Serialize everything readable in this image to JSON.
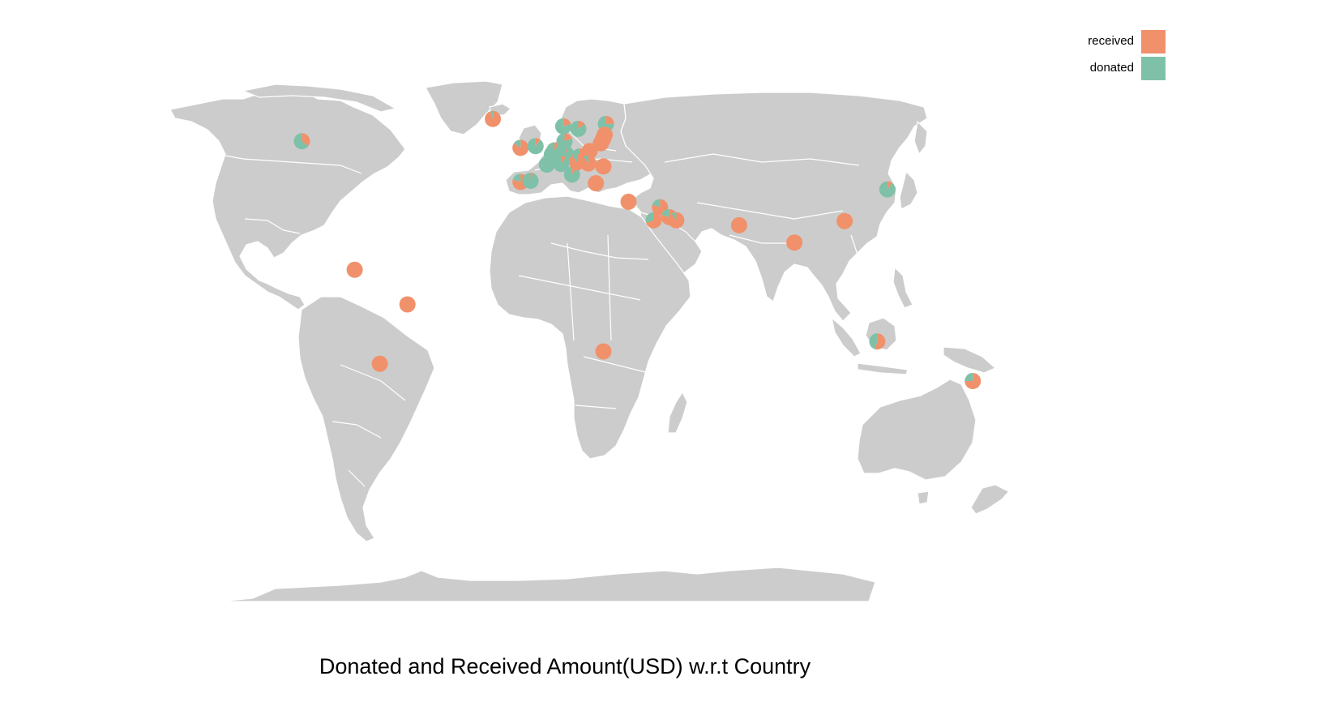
{
  "caption": "Donated and Received Amount(USD) w.r.t Country",
  "legend": [
    {
      "label": "received",
      "color": "#f0916b"
    },
    {
      "label": "donated",
      "color": "#7fc1a8"
    }
  ],
  "colors": {
    "received": "#f0916b",
    "donated": "#7fc1a8",
    "land": "#cccccc",
    "border": "#ffffff"
  },
  "locations": [
    {
      "lon": -95,
      "lat": 56,
      "received": 0.35,
      "donated": 0.65
    },
    {
      "lon": -19,
      "lat": 65,
      "received": 0.95,
      "donated": 0.05
    },
    {
      "lon": -8,
      "lat": 53.3,
      "received": 0.85,
      "donated": 0.15
    },
    {
      "lon": -2,
      "lat": 54,
      "received": 0.1,
      "donated": 0.9
    },
    {
      "lon": -8,
      "lat": 39.5,
      "received": 0.8,
      "donated": 0.2
    },
    {
      "lon": -4,
      "lat": 40,
      "received": 0.05,
      "donated": 0.95
    },
    {
      "lon": 2.5,
      "lat": 46.5,
      "received": 0.05,
      "donated": 0.95
    },
    {
      "lon": 4.5,
      "lat": 50.7,
      "received": 0.1,
      "donated": 0.9
    },
    {
      "lon": 5.5,
      "lat": 52.3,
      "received": 0.1,
      "donated": 0.9
    },
    {
      "lon": 10,
      "lat": 51,
      "received": 0.05,
      "donated": 0.95
    },
    {
      "lon": 8.2,
      "lat": 46.8,
      "received": 0.1,
      "donated": 0.9
    },
    {
      "lon": 12.5,
      "lat": 42.5,
      "received": 0.1,
      "donated": 0.9
    },
    {
      "lon": 9.5,
      "lat": 56,
      "received": 0.2,
      "donated": 0.8
    },
    {
      "lon": 15,
      "lat": 61,
      "received": 0.15,
      "donated": 0.85
    },
    {
      "lon": 9,
      "lat": 62,
      "received": 0.2,
      "donated": 0.8
    },
    {
      "lon": 26,
      "lat": 63,
      "received": 0.25,
      "donated": 0.75
    },
    {
      "lon": 25.5,
      "lat": 58.6,
      "received": 1,
      "donated": 0
    },
    {
      "lon": 24.8,
      "lat": 56.8,
      "received": 1,
      "donated": 0
    },
    {
      "lon": 24,
      "lat": 55.2,
      "received": 1,
      "donated": 0
    },
    {
      "lon": 19.5,
      "lat": 52,
      "received": 1,
      "donated": 0
    },
    {
      "lon": 15.5,
      "lat": 49.8,
      "received": 0.8,
      "donated": 0.2
    },
    {
      "lon": 14.5,
      "lat": 47.5,
      "received": 0.9,
      "donated": 0.1
    },
    {
      "lon": 19,
      "lat": 47,
      "received": 0.9,
      "donated": 0.1
    },
    {
      "lon": 25,
      "lat": 45.8,
      "received": 1,
      "donated": 0
    },
    {
      "lon": 22,
      "lat": 39,
      "received": 1,
      "donated": 0
    },
    {
      "lon": 35,
      "lat": 31.5,
      "received": 1,
      "donated": 0
    },
    {
      "lon": 47.5,
      "lat": 29.3,
      "received": 0.8,
      "donated": 0.2
    },
    {
      "lon": 45,
      "lat": 24,
      "received": 0.7,
      "donated": 0.3
    },
    {
      "lon": 51.2,
      "lat": 25.3,
      "received": 0.8,
      "donated": 0.2
    },
    {
      "lon": 54,
      "lat": 24,
      "received": 0.9,
      "donated": 0.1
    },
    {
      "lon": 79,
      "lat": 22,
      "received": 1,
      "donated": 0
    },
    {
      "lon": 101,
      "lat": 15,
      "received": 1,
      "donated": 0
    },
    {
      "lon": 121,
      "lat": 23.7,
      "received": 1,
      "donated": 0
    },
    {
      "lon": 138,
      "lat": 36.5,
      "received": 0.1,
      "donated": 0.9
    },
    {
      "lon": -74,
      "lat": 4,
      "received": 1,
      "donated": 0
    },
    {
      "lon": -53,
      "lat": -10,
      "received": 1,
      "donated": 0
    },
    {
      "lon": -64,
      "lat": -34,
      "received": 1,
      "donated": 0
    },
    {
      "lon": 25,
      "lat": -29,
      "received": 1,
      "donated": 0
    },
    {
      "lon": 134,
      "lat": -25,
      "received": 0.55,
      "donated": 0.45
    },
    {
      "lon": 172,
      "lat": -41,
      "received": 0.75,
      "donated": 0.25
    }
  ]
}
